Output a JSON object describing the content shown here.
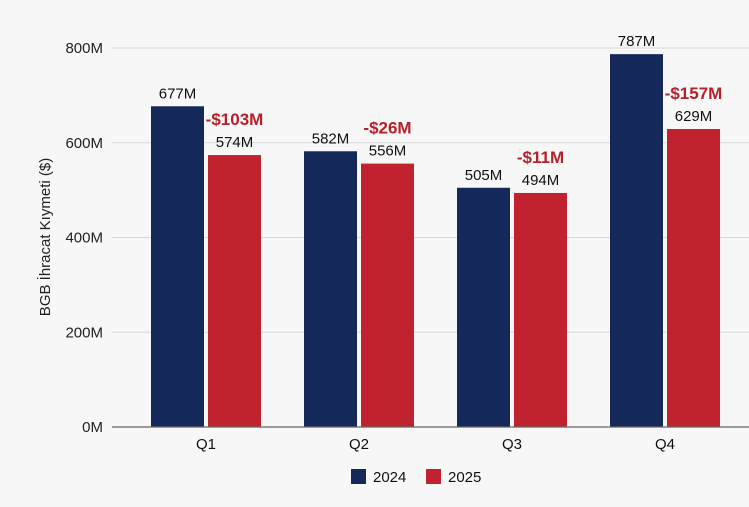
{
  "chart_data": {
    "type": "bar",
    "title": "",
    "xlabel": "",
    "ylabel": "BGB İhracat Kıymeti ($)",
    "ylim": [
      0,
      800
    ],
    "yticks": [
      0,
      200,
      400,
      600,
      800
    ],
    "ytick_labels": [
      "0M",
      "200M",
      "400M",
      "600M",
      "800M"
    ],
    "grid": true,
    "legend_position": "bottom-center",
    "categories": [
      "Q1",
      "Q2",
      "Q3",
      "Q4"
    ],
    "series": [
      {
        "name": "2024",
        "color": "#14285a",
        "values": [
          677,
          582,
          505,
          787
        ],
        "labels": [
          "677M",
          "582M",
          "505M",
          "787M"
        ]
      },
      {
        "name": "2025",
        "color": "#c0232f",
        "values": [
          574,
          556,
          494,
          629
        ],
        "labels": [
          "574M",
          "556M",
          "494M",
          "629M"
        ]
      }
    ],
    "annotations": [
      "-$103M",
      "-$26M",
      "-$11M",
      "-$157M"
    ]
  }
}
